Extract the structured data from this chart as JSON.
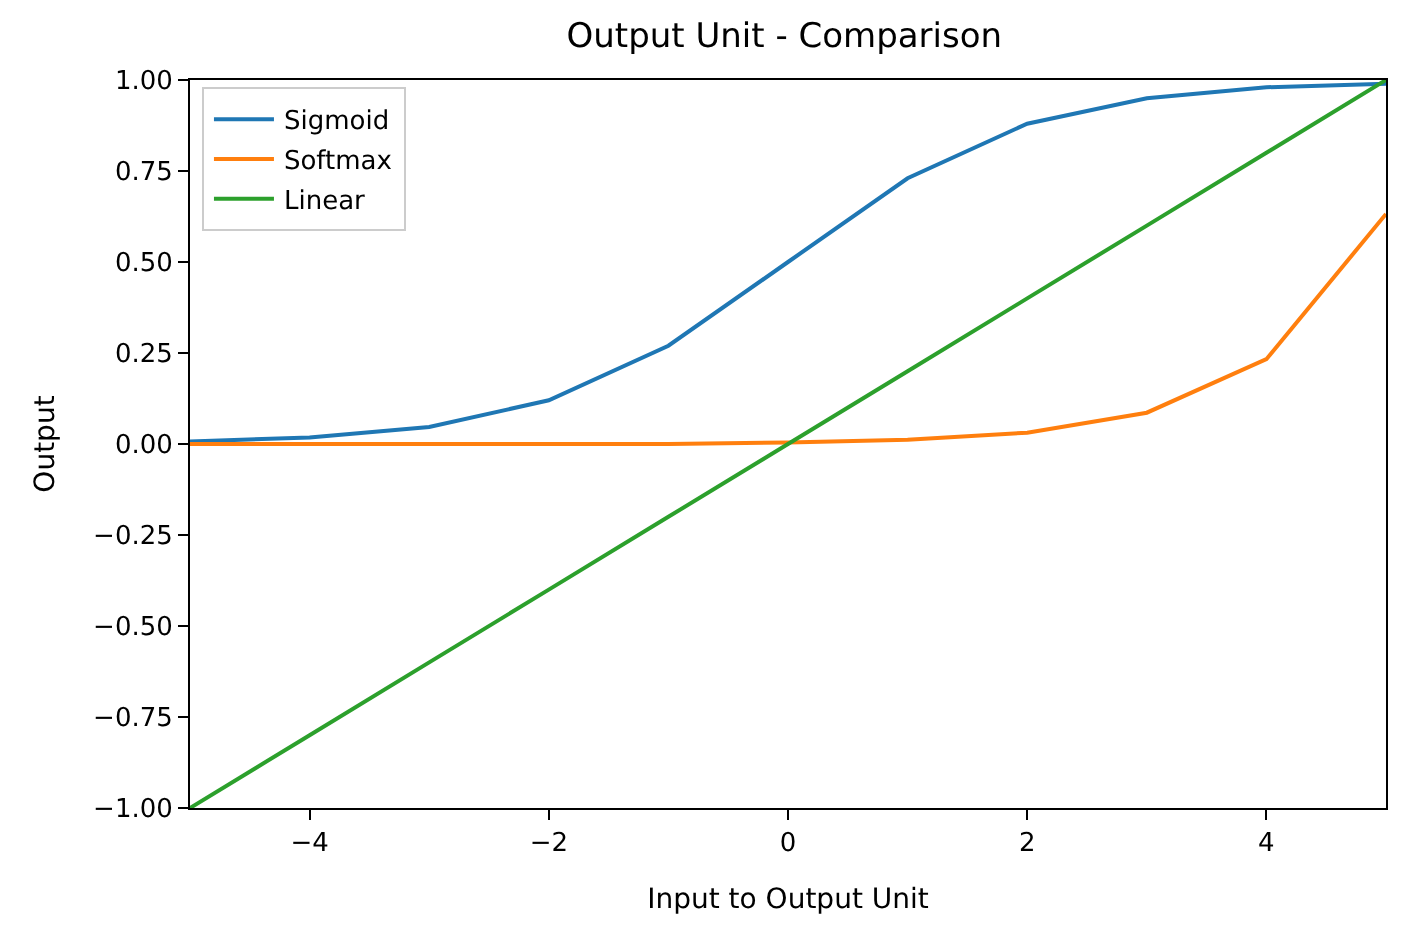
{
  "chart_data": {
    "type": "line",
    "title": "Output Unit - Comparison",
    "xlabel": "Input to Output Unit",
    "ylabel": "Output",
    "x": [
      -5,
      -4,
      -3,
      -2,
      -1,
      0,
      1,
      2,
      3,
      4,
      5
    ],
    "series": [
      {
        "name": "Sigmoid",
        "color": "#1f77b4",
        "values": [
          0.007,
          0.018,
          0.047,
          0.12,
          0.27,
          0.5,
          0.73,
          0.88,
          0.95,
          0.98,
          0.99
        ]
      },
      {
        "name": "Softmax",
        "color": "#ff7f0e",
        "values": [
          0.0,
          0.0,
          0.0,
          0.0,
          0.0,
          0.004,
          0.012,
          0.031,
          0.086,
          0.233,
          0.632
        ]
      },
      {
        "name": "Linear",
        "color": "#2ca02c",
        "values": [
          -1.0,
          -0.8,
          -0.6,
          -0.4,
          -0.2,
          0.0,
          0.2,
          0.4,
          0.6,
          0.8,
          1.0
        ]
      }
    ],
    "xlim": [
      -5,
      5
    ],
    "ylim": [
      -1,
      1
    ],
    "xticks": [
      {
        "value": -4,
        "label": "−4"
      },
      {
        "value": -2,
        "label": "−2"
      },
      0,
      2,
      4
    ],
    "yticks": [
      {
        "value": -1,
        "label": "−1.00"
      },
      {
        "value": -0.75,
        "label": "−0.75"
      },
      {
        "value": -0.5,
        "label": "−0.50"
      },
      {
        "value": -0.25,
        "label": "−0.25"
      },
      {
        "value": 0,
        "label": "0.00"
      },
      {
        "value": 0.25,
        "label": "0.25"
      },
      {
        "value": 0.5,
        "label": "0.50"
      },
      {
        "value": 0.75,
        "label": "0.75"
      },
      {
        "value": 1,
        "label": "1.00"
      }
    ],
    "legend": "top left",
    "marker": "none",
    "line_style": "solid"
  }
}
